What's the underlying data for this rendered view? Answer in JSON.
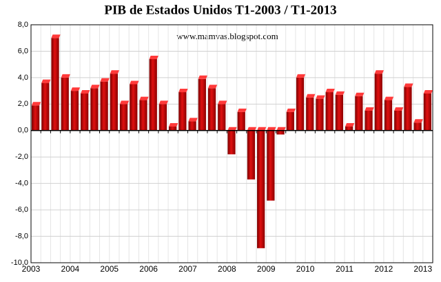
{
  "chart_data": {
    "type": "bar",
    "title": "PIB de Estados Unidos T1-2003 / T1-2013",
    "annotation": "www.mamvas.blogspot.com",
    "categories": [
      "2003",
      null,
      null,
      null,
      "2004",
      null,
      null,
      null,
      "2005",
      null,
      null,
      null,
      "2006",
      null,
      null,
      null,
      "2007",
      null,
      null,
      null,
      "2008",
      null,
      null,
      null,
      "2009",
      null,
      null,
      null,
      "2010",
      null,
      null,
      null,
      "2011",
      null,
      null,
      null,
      "2012",
      null,
      null,
      null,
      "2013"
    ],
    "values": [
      1.9,
      3.6,
      7.0,
      4.0,
      3.0,
      2.8,
      3.2,
      3.7,
      4.3,
      2.0,
      3.5,
      2.3,
      5.4,
      2.0,
      0.3,
      2.9,
      0.7,
      3.9,
      3.2,
      2.0,
      -1.8,
      1.4,
      -3.7,
      -8.9,
      -5.3,
      -0.3,
      1.4,
      4.0,
      2.5,
      2.4,
      2.9,
      2.7,
      0.3,
      2.6,
      1.5,
      4.3,
      2.3,
      1.5,
      3.3,
      0.6,
      2.8
    ],
    "color": "#cc0000",
    "ylim": [
      -10,
      8
    ],
    "yticks": [
      {
        "value": -10,
        "label": "-10,0"
      },
      {
        "value": -8,
        "label": "-8,0"
      },
      {
        "value": -6,
        "label": "-6,0"
      },
      {
        "value": -4,
        "label": "-4,0"
      },
      {
        "value": -2,
        "label": "-2,0"
      },
      {
        "value": 0,
        "label": "0,0"
      },
      {
        "value": 2,
        "label": "2,0"
      },
      {
        "value": 4,
        "label": "4,0"
      },
      {
        "value": 6,
        "label": "6,0"
      },
      {
        "value": 8,
        "label": "8,0"
      }
    ],
    "grid": true
  }
}
